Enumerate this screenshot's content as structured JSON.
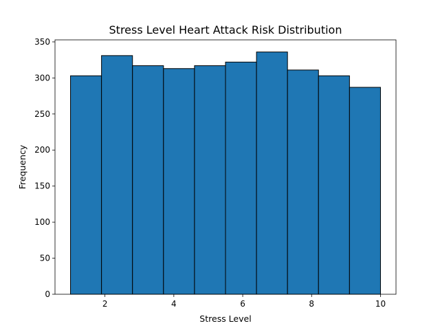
{
  "chart_data": {
    "type": "bar",
    "title": "Stress Level Heart Attack Risk Distribution",
    "xlabel": "Stress Level",
    "ylabel": "Frequency",
    "bin_edges": [
      1.0,
      1.9,
      2.8,
      3.7,
      4.6,
      5.5,
      6.4,
      7.3,
      8.2,
      9.1,
      10.0
    ],
    "values": [
      303,
      331,
      317,
      313,
      317,
      322,
      336,
      311,
      303,
      287
    ],
    "xlim": [
      0.55,
      10.45
    ],
    "ylim": [
      0,
      352.8
    ],
    "xticks": [
      2,
      4,
      6,
      8,
      10
    ],
    "yticks": [
      0,
      50,
      100,
      150,
      200,
      250,
      300,
      350
    ],
    "bar_color": "#1f77b4",
    "edge_color": "#000000",
    "grid": false
  }
}
